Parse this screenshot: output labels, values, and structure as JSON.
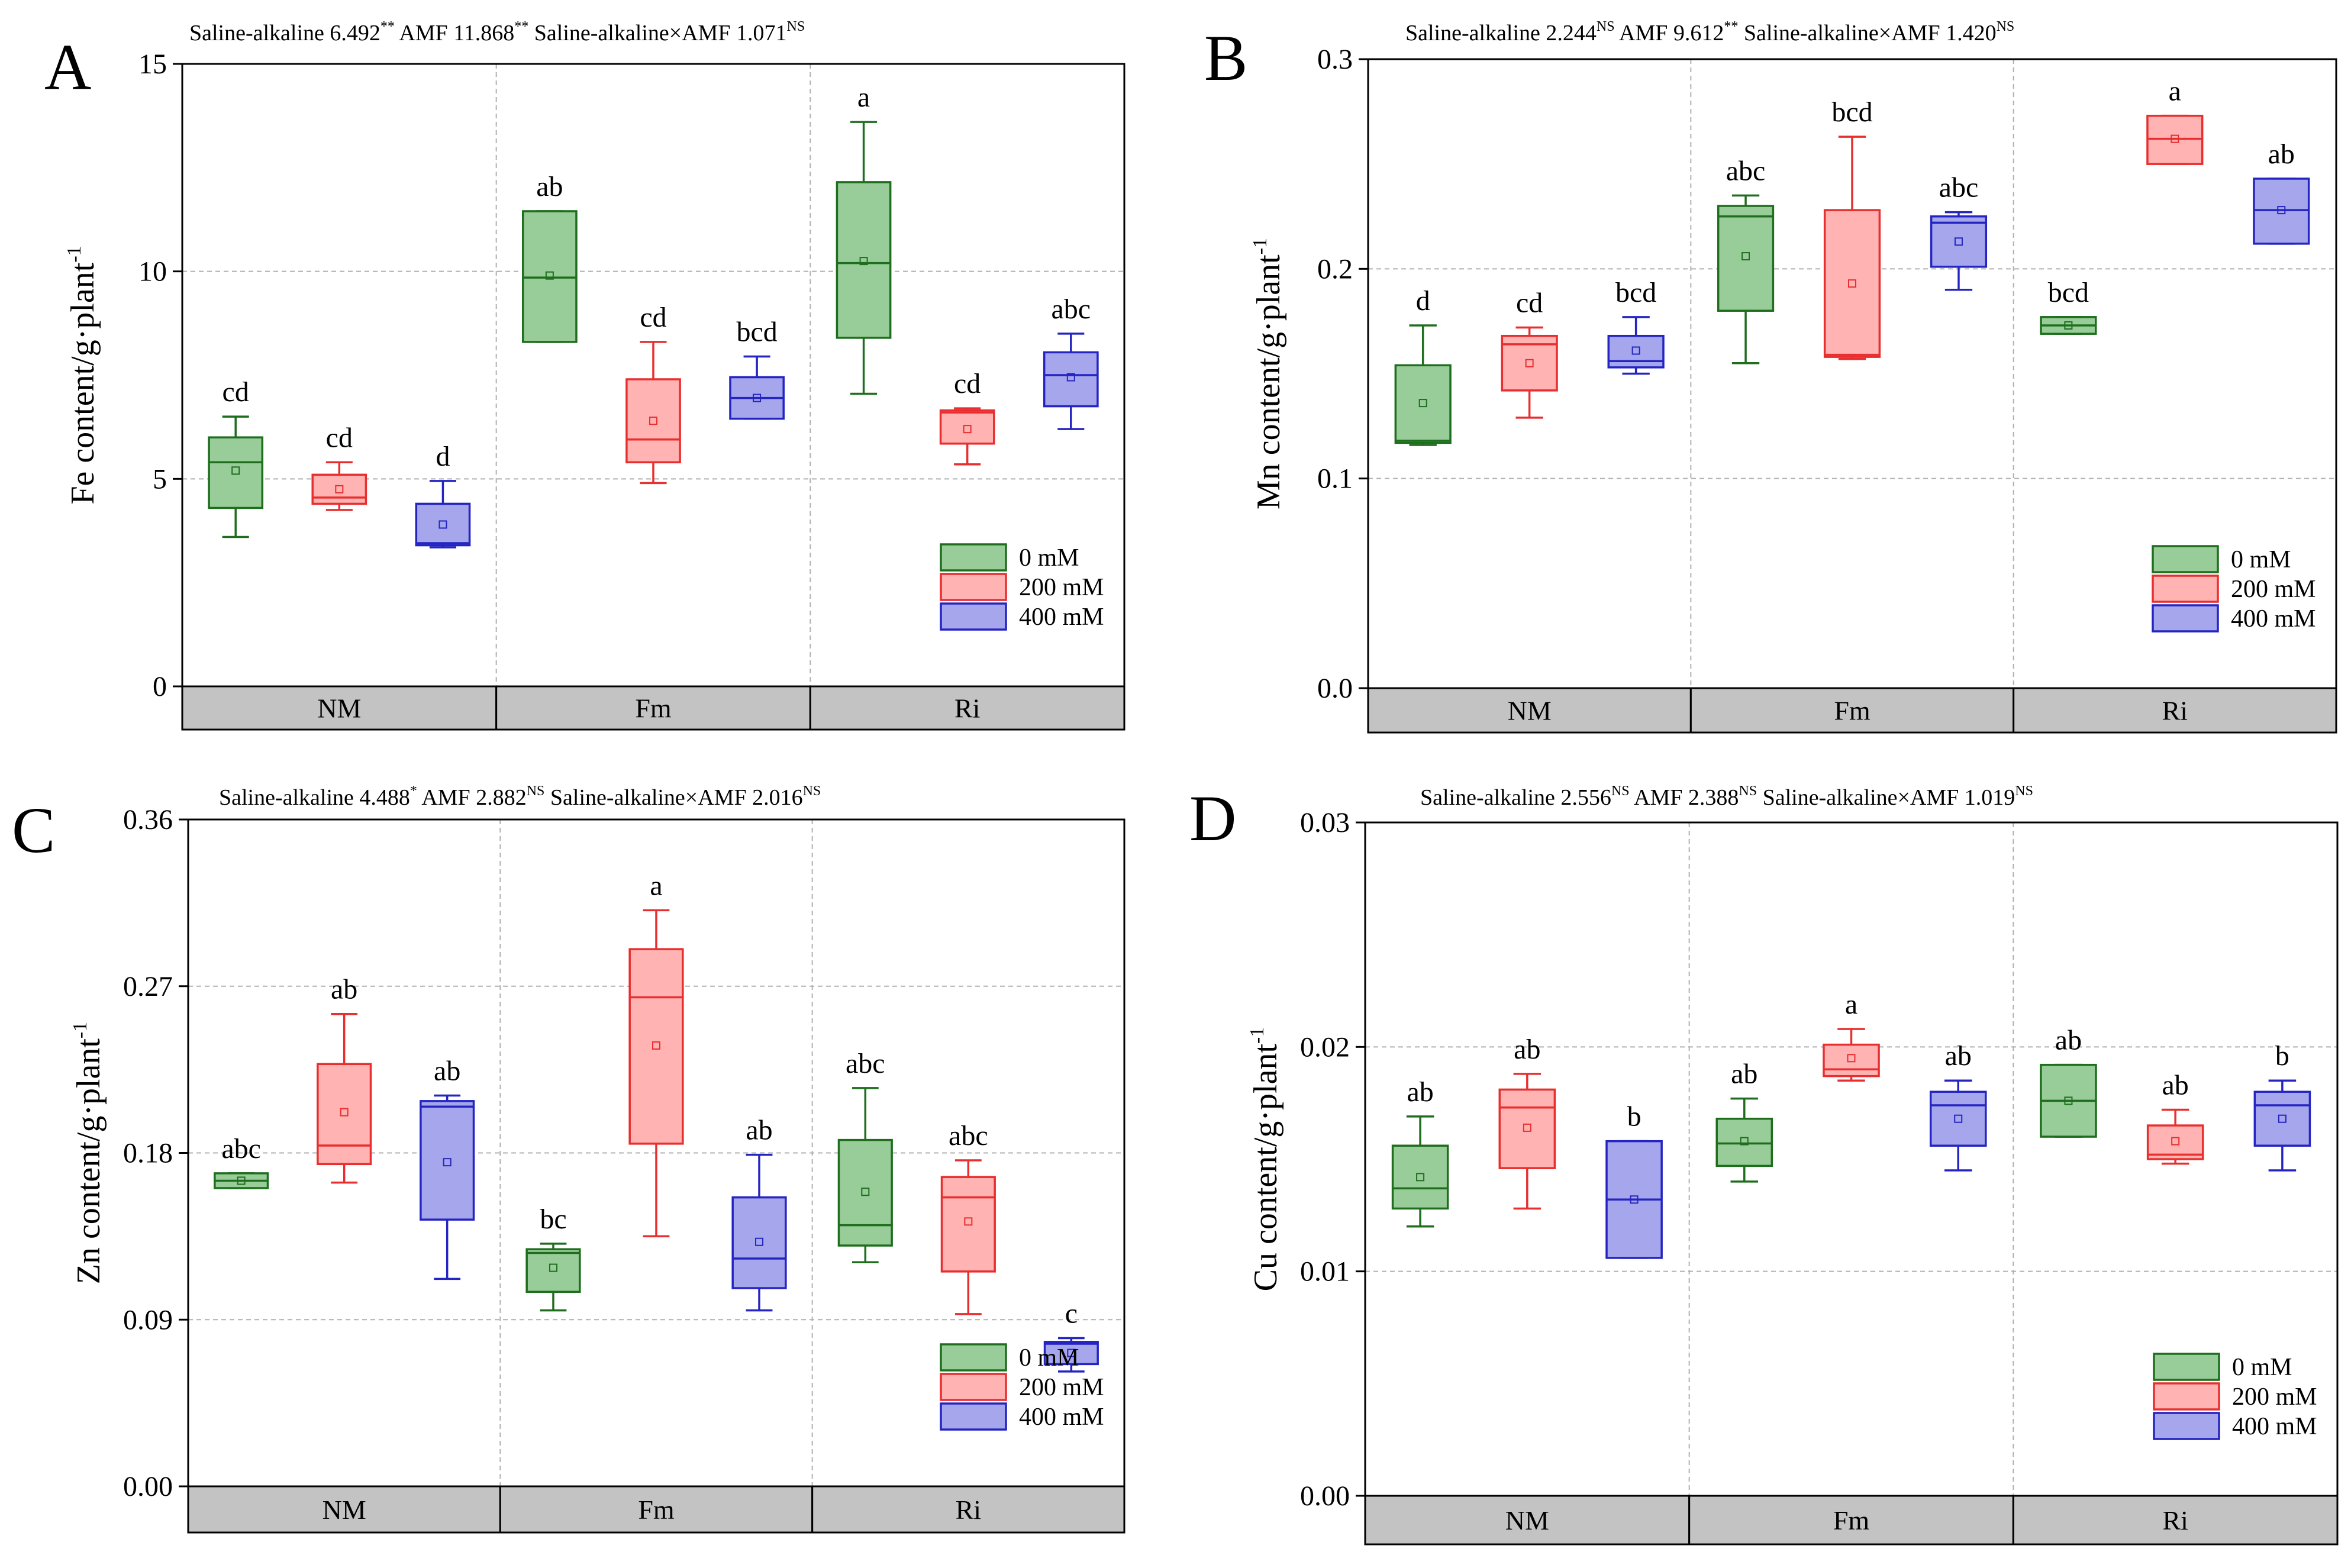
{
  "colors": {
    "g0": {
      "fill": "#98cc98",
      "stroke": "#1e6e1e"
    },
    "g200": {
      "fill": "#ffb3b3",
      "stroke": "#e82e2e"
    },
    "g400": {
      "fill": "#a6a6ec",
      "stroke": "#2424c2"
    },
    "group_band": "#c3c3c3",
    "grid": "#b0b0b0"
  },
  "chart_data": [
    {
      "panel": "A",
      "type": "box",
      "stats_parts": [
        "Saline-alkaline 6.492",
        "**",
        " AMF 11.868",
        "**",
        "  Saline-alkaline×AMF 1.071",
        "NS"
      ],
      "ylabel_main": "Fe content/g·plant",
      "ylabel_sup": "-1",
      "ylim": [
        0,
        15
      ],
      "yticks": [
        "0",
        "5",
        "10",
        "15"
      ],
      "ytick_values": [
        0,
        5,
        10,
        15
      ],
      "groups": [
        "NM",
        "Fm",
        "Ri"
      ],
      "legend": [
        "0 mM",
        "200 mM",
        "400 mM"
      ],
      "legend_pos": "bottom-right",
      "boxes": [
        {
          "group": "NM",
          "series": "0 mM",
          "min": 3.6,
          "q1": 4.3,
          "median": 5.4,
          "q3": 6.0,
          "max": 6.5,
          "mean": 5.2,
          "label": "cd"
        },
        {
          "group": "NM",
          "series": "200 mM",
          "min": 4.25,
          "q1": 4.4,
          "median": 4.55,
          "q3": 5.1,
          "max": 5.4,
          "mean": 4.75,
          "label": "cd"
        },
        {
          "group": "NM",
          "series": "400 mM",
          "min": 3.35,
          "q1": 3.4,
          "median": 3.45,
          "q3": 4.4,
          "max": 4.95,
          "mean": 3.9,
          "label": "d"
        },
        {
          "group": "Fm",
          "series": "0 mM",
          "min": 8.3,
          "q1": 8.3,
          "median": 9.85,
          "q3": 11.45,
          "max": 11.45,
          "mean": 9.9,
          "label": "ab"
        },
        {
          "group": "Fm",
          "series": "200 mM",
          "min": 4.9,
          "q1": 5.4,
          "median": 5.95,
          "q3": 7.4,
          "max": 8.3,
          "mean": 6.4,
          "label": "cd"
        },
        {
          "group": "Fm",
          "series": "400 mM",
          "min": 6.45,
          "q1": 6.45,
          "median": 6.95,
          "q3": 7.45,
          "max": 7.95,
          "mean": 6.95,
          "label": "bcd"
        },
        {
          "group": "Ri",
          "series": "0 mM",
          "min": 7.05,
          "q1": 8.4,
          "median": 10.2,
          "q3": 12.15,
          "max": 13.6,
          "mean": 10.25,
          "label": "a"
        },
        {
          "group": "Ri",
          "series": "200 mM",
          "min": 5.35,
          "q1": 5.85,
          "median": 6.6,
          "q3": 6.65,
          "max": 6.7,
          "mean": 6.2,
          "label": "cd"
        },
        {
          "group": "Ri",
          "series": "400 mM",
          "min": 6.2,
          "q1": 6.75,
          "median": 7.5,
          "q3": 8.05,
          "max": 8.5,
          "mean": 7.45,
          "label": "abc"
        }
      ]
    },
    {
      "panel": "B",
      "type": "box",
      "stats_parts": [
        "Saline-alkaline 2.244",
        "NS",
        " AMF 9.612",
        "**",
        "  Saline-alkaline×AMF 1.420",
        "NS"
      ],
      "ylabel_main": "Mn content/g·plant",
      "ylabel_sup": "-1",
      "ylim": [
        0,
        0.3
      ],
      "yticks": [
        "0.0",
        "0.1",
        "0.2",
        "0.3"
      ],
      "ytick_values": [
        0,
        0.1,
        0.2,
        0.3
      ],
      "groups": [
        "NM",
        "Fm",
        "Ri"
      ],
      "legend": [
        "0 mM",
        "200 mM",
        "400 mM"
      ],
      "legend_pos": "bottom-right",
      "boxes": [
        {
          "group": "NM",
          "series": "0 mM",
          "min": 0.116,
          "q1": 0.117,
          "median": 0.118,
          "q3": 0.154,
          "max": 0.173,
          "mean": 0.136,
          "label": "d"
        },
        {
          "group": "NM",
          "series": "200 mM",
          "min": 0.129,
          "q1": 0.142,
          "median": 0.164,
          "q3": 0.168,
          "max": 0.172,
          "mean": 0.155,
          "label": "cd"
        },
        {
          "group": "NM",
          "series": "400 mM",
          "min": 0.15,
          "q1": 0.153,
          "median": 0.156,
          "q3": 0.168,
          "max": 0.177,
          "mean": 0.161,
          "label": "bcd"
        },
        {
          "group": "Fm",
          "series": "0 mM",
          "min": 0.155,
          "q1": 0.18,
          "median": 0.225,
          "q3": 0.23,
          "max": 0.235,
          "mean": 0.206,
          "label": "abc"
        },
        {
          "group": "Fm",
          "series": "200 mM",
          "min": 0.157,
          "q1": 0.158,
          "median": 0.159,
          "q3": 0.228,
          "max": 0.263,
          "mean": 0.193,
          "label": "bcd"
        },
        {
          "group": "Fm",
          "series": "400 mM",
          "min": 0.19,
          "q1": 0.201,
          "median": 0.222,
          "q3": 0.225,
          "max": 0.227,
          "mean": 0.213,
          "label": "abc"
        },
        {
          "group": "Ri",
          "series": "0 mM",
          "min": 0.169,
          "q1": 0.169,
          "median": 0.173,
          "q3": 0.177,
          "max": 0.177,
          "mean": 0.173,
          "label": "bcd"
        },
        {
          "group": "Ri",
          "series": "200 mM",
          "min": 0.25,
          "q1": 0.25,
          "median": 0.262,
          "q3": 0.273,
          "max": 0.273,
          "mean": 0.262,
          "label": "a"
        },
        {
          "group": "Ri",
          "series": "400 mM",
          "min": 0.212,
          "q1": 0.212,
          "median": 0.228,
          "q3": 0.243,
          "max": 0.243,
          "mean": 0.228,
          "label": "ab"
        }
      ]
    },
    {
      "panel": "C",
      "type": "box",
      "stats_parts": [
        "Saline-alkaline 4.488",
        "*",
        " AMF 2.882",
        "NS",
        " Saline-alkaline×AMF 2.016",
        "NS"
      ],
      "ylabel_main": "Zn content/g·plant",
      "ylabel_sup": "-1",
      "ylim": [
        0,
        0.36
      ],
      "yticks": [
        "0.00",
        "0.09",
        "0.18",
        "0.27",
        "0.36"
      ],
      "ytick_values": [
        0,
        0.09,
        0.18,
        0.27,
        0.36
      ],
      "groups": [
        "NM",
        "Fm",
        "Ri"
      ],
      "legend": [
        "0 mM",
        "200 mM",
        "400 mM"
      ],
      "legend_pos": "bottom-right",
      "boxes": [
        {
          "group": "NM",
          "series": "0 mM",
          "min": 0.161,
          "q1": 0.161,
          "median": 0.165,
          "q3": 0.169,
          "max": 0.169,
          "mean": 0.165,
          "label": "abc"
        },
        {
          "group": "NM",
          "series": "200 mM",
          "min": 0.164,
          "q1": 0.174,
          "median": 0.184,
          "q3": 0.228,
          "max": 0.255,
          "mean": 0.202,
          "label": "ab"
        },
        {
          "group": "NM",
          "series": "400 mM",
          "min": 0.112,
          "q1": 0.144,
          "median": 0.205,
          "q3": 0.208,
          "max": 0.211,
          "mean": 0.175,
          "label": "ab"
        },
        {
          "group": "Fm",
          "series": "0 mM",
          "min": 0.095,
          "q1": 0.105,
          "median": 0.126,
          "q3": 0.128,
          "max": 0.131,
          "mean": 0.118,
          "label": "bc"
        },
        {
          "group": "Fm",
          "series": "200 mM",
          "min": 0.135,
          "q1": 0.185,
          "median": 0.264,
          "q3": 0.29,
          "max": 0.311,
          "mean": 0.238,
          "label": "a"
        },
        {
          "group": "Fm",
          "series": "400 mM",
          "min": 0.095,
          "q1": 0.107,
          "median": 0.123,
          "q3": 0.156,
          "max": 0.179,
          "mean": 0.132,
          "label": "ab"
        },
        {
          "group": "Ri",
          "series": "0 mM",
          "min": 0.121,
          "q1": 0.13,
          "median": 0.141,
          "q3": 0.187,
          "max": 0.215,
          "mean": 0.159,
          "label": "abc"
        },
        {
          "group": "Ri",
          "series": "200 mM",
          "min": 0.093,
          "q1": 0.116,
          "median": 0.156,
          "q3": 0.167,
          "max": 0.176,
          "mean": 0.143,
          "label": "abc"
        },
        {
          "group": "Ri",
          "series": "400 mM",
          "min": 0.062,
          "q1": 0.066,
          "median": 0.077,
          "q3": 0.078,
          "max": 0.08,
          "mean": 0.072,
          "label": "c"
        }
      ]
    },
    {
      "panel": "D",
      "type": "box",
      "stats_parts": [
        "Saline-alkaline 2.556",
        "NS",
        " AMF 2.388",
        "NS",
        " Saline-alkaline×AMF 1.019",
        "NS"
      ],
      "ylabel_main": "Cu content/g·plant",
      "ylabel_sup": "-1",
      "ylim": [
        0,
        0.03
      ],
      "yticks": [
        "0.00",
        "0.01",
        "0.02",
        "0.03"
      ],
      "ytick_values": [
        0,
        0.01,
        0.02,
        0.03
      ],
      "groups": [
        "NM",
        "Fm",
        "Ri"
      ],
      "legend": [
        "0 mM",
        "200 mM",
        "400 mM"
      ],
      "legend_pos": "bottom-right",
      "boxes": [
        {
          "group": "NM",
          "series": "0 mM",
          "min": 0.012,
          "q1": 0.0128,
          "median": 0.0137,
          "q3": 0.0156,
          "max": 0.0169,
          "mean": 0.0142,
          "label": "ab"
        },
        {
          "group": "NM",
          "series": "200 mM",
          "min": 0.0128,
          "q1": 0.0146,
          "median": 0.0173,
          "q3": 0.0181,
          "max": 0.0188,
          "mean": 0.0164,
          "label": "ab"
        },
        {
          "group": "NM",
          "series": "400 mM",
          "min": 0.0106,
          "q1": 0.0106,
          "median": 0.0132,
          "q3": 0.0158,
          "max": 0.0158,
          "mean": 0.0132,
          "label": "b"
        },
        {
          "group": "Fm",
          "series": "0 mM",
          "min": 0.014,
          "q1": 0.0147,
          "median": 0.0157,
          "q3": 0.0168,
          "max": 0.0177,
          "mean": 0.0158,
          "label": "ab"
        },
        {
          "group": "Fm",
          "series": "200 mM",
          "min": 0.0185,
          "q1": 0.0187,
          "median": 0.019,
          "q3": 0.0201,
          "max": 0.0208,
          "mean": 0.0195,
          "label": "a"
        },
        {
          "group": "Fm",
          "series": "400 mM",
          "min": 0.0145,
          "q1": 0.0156,
          "median": 0.0174,
          "q3": 0.018,
          "max": 0.0185,
          "mean": 0.0168,
          "label": "ab"
        },
        {
          "group": "Ri",
          "series": "0 mM",
          "min": 0.016,
          "q1": 0.016,
          "median": 0.0176,
          "q3": 0.0192,
          "max": 0.0192,
          "mean": 0.0176,
          "label": "ab"
        },
        {
          "group": "Ri",
          "series": "200 mM",
          "min": 0.0148,
          "q1": 0.015,
          "median": 0.0152,
          "q3": 0.0165,
          "max": 0.0172,
          "mean": 0.0158,
          "label": "ab"
        },
        {
          "group": "Ri",
          "series": "400 mM",
          "min": 0.0145,
          "q1": 0.0156,
          "median": 0.0174,
          "q3": 0.018,
          "max": 0.0185,
          "mean": 0.0168,
          "label": "b"
        }
      ]
    }
  ]
}
